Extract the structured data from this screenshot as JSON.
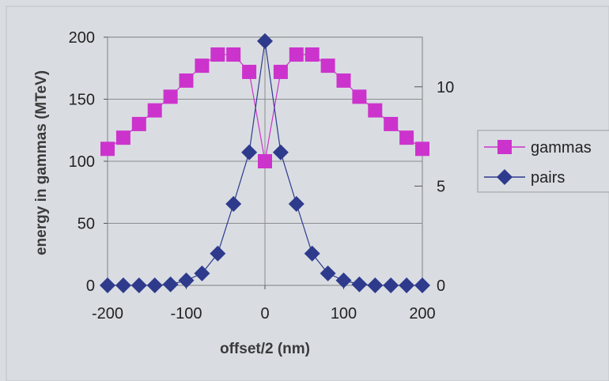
{
  "chart_data": {
    "type": "line",
    "xlabel": "offset/2 (nm)",
    "ylabel": "energy in gammas (MTeV)",
    "x_ticks": [
      "-200",
      "-100",
      "0",
      "100",
      "200"
    ],
    "xlim": [
      -200,
      200
    ],
    "ylim": [
      0,
      200
    ],
    "y_ticks": [
      "0",
      "50",
      "100",
      "150",
      "200"
    ],
    "y2lim": [
      0,
      12.5
    ],
    "y2_ticks": [
      "0",
      "5",
      "10"
    ],
    "grid": "horizontal major lines on left axis",
    "legend_position": "right",
    "x": [
      -200,
      -180,
      -160,
      -140,
      -120,
      -100,
      -80,
      -60,
      -40,
      -20,
      0,
      20,
      40,
      60,
      80,
      100,
      120,
      140,
      160,
      180,
      200
    ],
    "series": [
      {
        "name": "gammas",
        "axis": "left",
        "marker": "square",
        "color": "#cc33cc",
        "values": [
          110,
          119,
          130,
          141,
          152,
          165,
          177,
          186,
          186,
          172,
          100,
          172,
          186,
          186,
          177,
          165,
          152,
          141,
          130,
          119,
          110
        ]
      },
      {
        "name": "pairs",
        "axis": "right",
        "marker": "diamond",
        "color": "#2e3a8c",
        "values": [
          0.0,
          0.0,
          0.0,
          0.0,
          0.05,
          0.25,
          0.6,
          1.6,
          4.1,
          6.7,
          12.3,
          6.7,
          4.1,
          1.6,
          0.6,
          0.25,
          0.05,
          0.0,
          0.0,
          0.0,
          0.0
        ]
      }
    ]
  }
}
